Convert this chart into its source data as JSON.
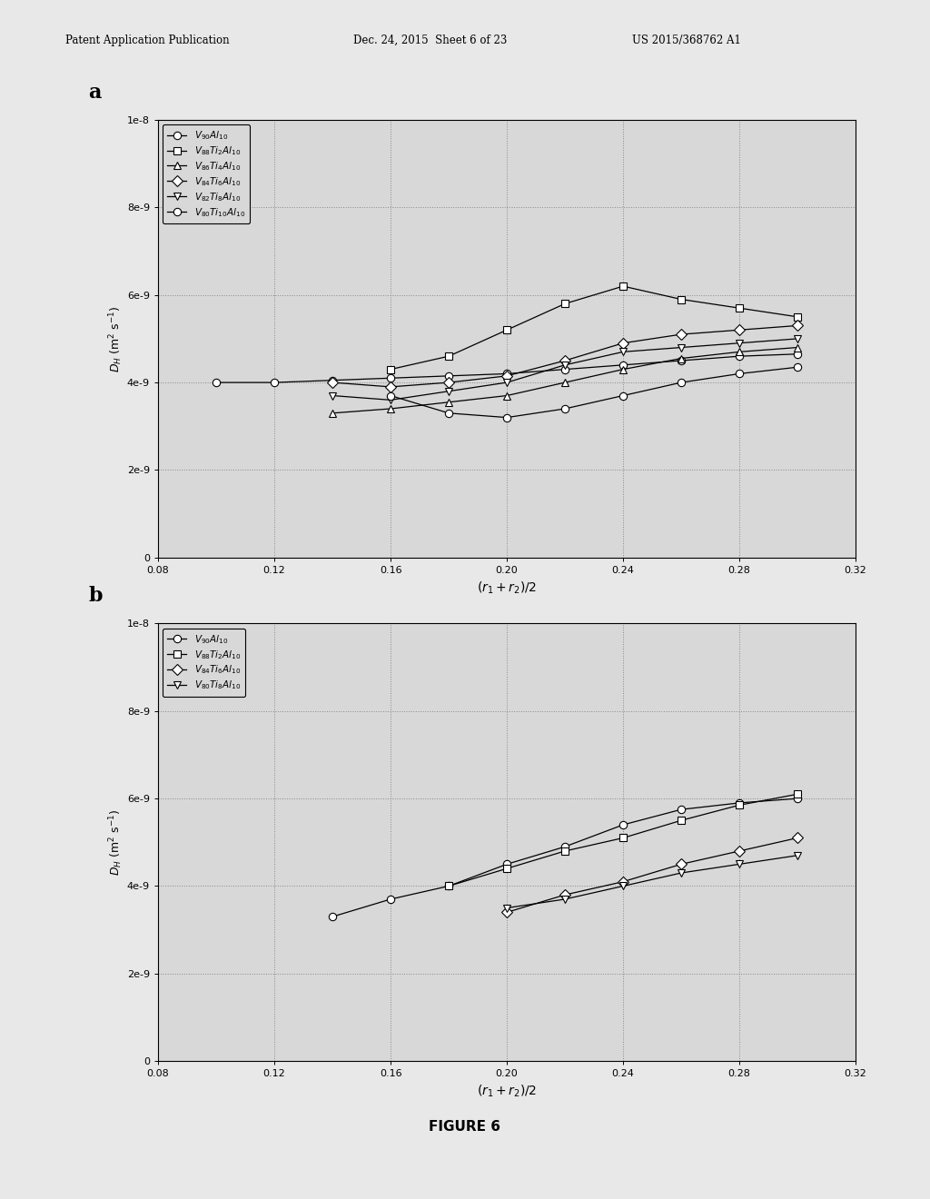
{
  "background_color": "#e8e8e8",
  "figure_label": "FIGURE 6",
  "header": {
    "left": "Patent Application Publication",
    "center": "Dec. 24, 2015  Sheet 6 of 23",
    "right": "US 2015/368762 A1"
  },
  "plot_a": {
    "label": "a",
    "xlabel": "$(r_1 + r_2)/2$",
    "ylabel": "$D_H$ (m$^2$ s$^{-1}$)",
    "xlim": [
      0.08,
      0.32
    ],
    "ylim": [
      0,
      1e-08
    ],
    "xticks": [
      0.08,
      0.12,
      0.16,
      0.2,
      0.24,
      0.28,
      0.32
    ],
    "yticks": [
      0,
      2e-09,
      4e-09,
      6e-09,
      8e-09,
      1e-08
    ],
    "series": [
      {
        "label": "$V_{90}Al_{10}$",
        "marker": "o",
        "x": [
          0.1,
          0.12,
          0.14,
          0.16,
          0.18,
          0.2,
          0.22,
          0.24,
          0.26,
          0.28,
          0.3
        ],
        "y": [
          4e-09,
          4e-09,
          4.05e-09,
          4.1e-09,
          4.15e-09,
          4.2e-09,
          4.3e-09,
          4.4e-09,
          4.5e-09,
          4.6e-09,
          4.65e-09
        ]
      },
      {
        "label": "$V_{88}Ti_2Al_{10}$",
        "marker": "s",
        "x": [
          0.16,
          0.18,
          0.2,
          0.22,
          0.24,
          0.26,
          0.28,
          0.3
        ],
        "y": [
          4.3e-09,
          4.6e-09,
          5.2e-09,
          5.8e-09,
          6.2e-09,
          5.9e-09,
          5.7e-09,
          5.5e-09
        ]
      },
      {
        "label": "$V_{86}Ti_4Al_{10}$",
        "marker": "^",
        "x": [
          0.14,
          0.16,
          0.18,
          0.2,
          0.22,
          0.24,
          0.26,
          0.28,
          0.3
        ],
        "y": [
          3.3e-09,
          3.4e-09,
          3.55e-09,
          3.7e-09,
          4e-09,
          4.3e-09,
          4.55e-09,
          4.7e-09,
          4.8e-09
        ]
      },
      {
        "label": "$V_{84}Ti_6Al_{10}$",
        "marker": "D",
        "x": [
          0.14,
          0.16,
          0.18,
          0.2,
          0.22,
          0.24,
          0.26,
          0.28,
          0.3
        ],
        "y": [
          4e-09,
          3.9e-09,
          4e-09,
          4.15e-09,
          4.5e-09,
          4.9e-09,
          5.1e-09,
          5.2e-09,
          5.3e-09
        ]
      },
      {
        "label": "$V_{82}Ti_8Al_{10}$",
        "marker": "v",
        "x": [
          0.14,
          0.16,
          0.18,
          0.2,
          0.22,
          0.24,
          0.26,
          0.28,
          0.3
        ],
        "y": [
          3.7e-09,
          3.6e-09,
          3.8e-09,
          4e-09,
          4.4e-09,
          4.7e-09,
          4.8e-09,
          4.9e-09,
          5e-09
        ]
      },
      {
        "label": "$V_{80}Ti_{10}Al_{10}$",
        "marker": "o",
        "x": [
          0.16,
          0.18,
          0.2,
          0.22,
          0.24,
          0.26,
          0.28,
          0.3
        ],
        "y": [
          3.7e-09,
          3.3e-09,
          3.2e-09,
          3.4e-09,
          3.7e-09,
          4e-09,
          4.2e-09,
          4.35e-09
        ]
      }
    ]
  },
  "plot_b": {
    "label": "b",
    "xlabel": "$(r_1 + r_2)/2$",
    "ylabel": "$D_H$ (m$^2$ s$^{-1}$)",
    "xlim": [
      0.08,
      0.32
    ],
    "ylim": [
      0,
      1e-08
    ],
    "xticks": [
      0.08,
      0.12,
      0.16,
      0.2,
      0.24,
      0.28,
      0.32
    ],
    "yticks": [
      0,
      2e-09,
      4e-09,
      6e-09,
      8e-09,
      1e-08
    ],
    "series": [
      {
        "label": "$V_{90}Al_{10}$",
        "marker": "o",
        "x": [
          0.14,
          0.16,
          0.18,
          0.2,
          0.22,
          0.24,
          0.26,
          0.28,
          0.3
        ],
        "y": [
          3.3e-09,
          3.7e-09,
          4e-09,
          4.5e-09,
          4.9e-09,
          5.4e-09,
          5.75e-09,
          5.9e-09,
          6e-09
        ]
      },
      {
        "label": "$V_{88}Ti_2Al_{10}$",
        "marker": "s",
        "x": [
          0.18,
          0.2,
          0.22,
          0.24,
          0.26,
          0.28,
          0.3
        ],
        "y": [
          4e-09,
          4.4e-09,
          4.8e-09,
          5.1e-09,
          5.5e-09,
          5.85e-09,
          6.1e-09
        ]
      },
      {
        "label": "$V_{84}Ti_6Al_{10}$",
        "marker": "D",
        "x": [
          0.2,
          0.22,
          0.24,
          0.26,
          0.28,
          0.3
        ],
        "y": [
          3.4e-09,
          3.8e-09,
          4.1e-09,
          4.5e-09,
          4.8e-09,
          5.1e-09
        ]
      },
      {
        "label": "$V_{80}Ti_8Al_{10}$",
        "marker": "v",
        "x": [
          0.2,
          0.22,
          0.24,
          0.26,
          0.28,
          0.3
        ],
        "y": [
          3.5e-09,
          3.7e-09,
          4e-09,
          4.3e-09,
          4.5e-09,
          4.7e-09
        ]
      }
    ]
  }
}
